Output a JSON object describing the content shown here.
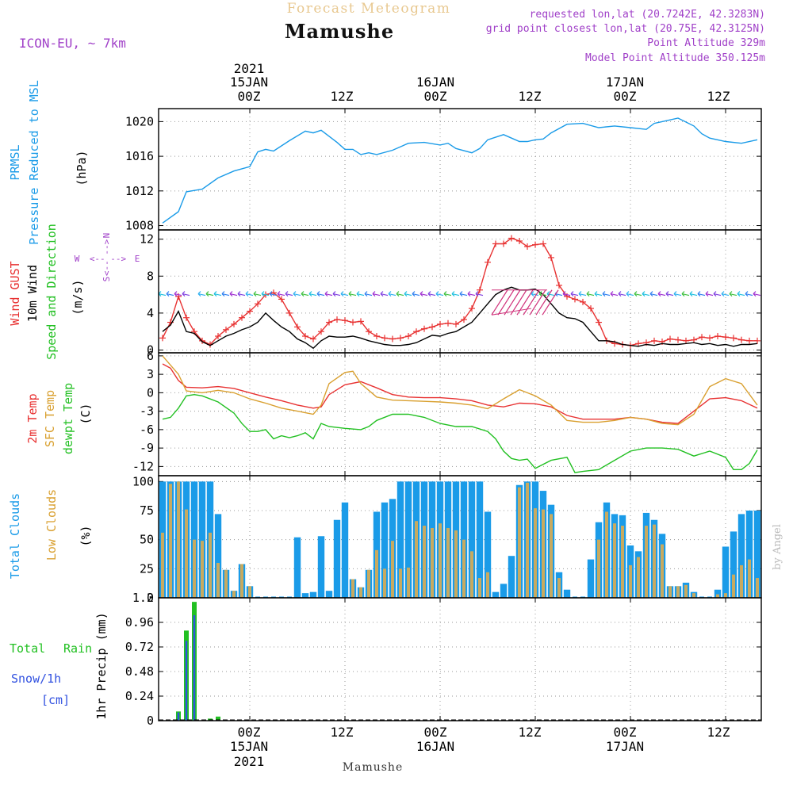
{
  "header": {
    "title": "Forecast Meteogram",
    "location": "Mamushe",
    "model": "ICON-EU, ~ 7km",
    "requested": "requested lon,lat (20.7242E, 42.3283N)",
    "gridpoint": "grid point closest lon,lat (20.75E, 42.3125N)",
    "point_alt": "Point Altitude 329m",
    "model_alt": "Model Point Altitude 350.125m",
    "footer_location": "Mamushe",
    "credit": "by Angel"
  },
  "time_axis": {
    "year": "2021",
    "day_labels": [
      "15JAN",
      "16JAN",
      "17JAN"
    ],
    "tick_labels": [
      "00Z",
      "12Z",
      "00Z",
      "12Z",
      "00Z",
      "12Z"
    ],
    "tick_hours": [
      0,
      12,
      24,
      36,
      48,
      60
    ]
  },
  "colors": {
    "pressure": "#1a9be8",
    "gust": "#e83232",
    "wind": "#000000",
    "temp2m": "#e83232",
    "sfc": "#d9a030",
    "dewpt": "#22c022",
    "total_cloud": "#1a9be8",
    "low_cloud": "#c8aa60",
    "rain": "#22c022",
    "snow": "#3050e0",
    "title": "#e8c890",
    "meta": "#a040c8"
  },
  "chart_data": [
    {
      "type": "line",
      "name": "pressure",
      "labels": [
        "PRMSL",
        "Pressure Reduced to MSL",
        "(hPa)"
      ],
      "ylim": [
        1007.5,
        1021.5
      ],
      "yticks": [
        1008,
        1012,
        1016,
        1020
      ],
      "series": [
        {
          "name": "PRMSL",
          "x": [
            -11,
            -9,
            -8,
            -6,
            -4,
            -2,
            0,
            1,
            2,
            3,
            5,
            7,
            8,
            9,
            11,
            12,
            13,
            14,
            15,
            16,
            18,
            20,
            22,
            24,
            25,
            26,
            28,
            29,
            30,
            32,
            34,
            35,
            36,
            37,
            38,
            40,
            42,
            44,
            46,
            48,
            50,
            51,
            52,
            54,
            56,
            57,
            58,
            60,
            62,
            64
          ],
          "y": [
            1008.3,
            1009.6,
            1011.9,
            1012.2,
            1013.5,
            1014.3,
            1014.8,
            1016.5,
            1016.8,
            1016.6,
            1017.8,
            1018.9,
            1018.7,
            1019.0,
            1017.6,
            1016.8,
            1016.8,
            1016.2,
            1016.4,
            1016.2,
            1016.7,
            1017.5,
            1017.6,
            1017.3,
            1017.5,
            1016.9,
            1016.4,
            1016.9,
            1017.9,
            1018.5,
            1017.7,
            1017.7,
            1017.9,
            1018.0,
            1018.7,
            1019.7,
            1019.8,
            1019.3,
            1019.5,
            1019.3,
            1019.1,
            1019.8,
            1020.0,
            1020.4,
            1019.5,
            1018.6,
            1018.1,
            1017.7,
            1017.5,
            1017.9
          ]
        }
      ]
    },
    {
      "type": "line",
      "name": "wind",
      "labels": [
        "Wind GUST",
        "10m Wind",
        "Speed and Direction",
        "(m/s)"
      ],
      "compass": [
        "N",
        "S",
        "W",
        "E"
      ],
      "ylim": [
        -0.3,
        13
      ],
      "yticks": [
        0,
        4,
        8,
        12
      ],
      "series": [
        {
          "name": "Wind GUST",
          "x": [
            -11,
            -10,
            -9,
            -8,
            -7,
            -6,
            -5,
            -4,
            -3,
            -2,
            -1,
            0,
            1,
            2,
            3,
            4,
            5,
            6,
            7,
            8,
            9,
            10,
            11,
            12,
            13,
            14,
            15,
            16,
            17,
            18,
            19,
            20,
            21,
            22,
            23,
            24,
            25,
            26,
            27,
            28,
            29,
            30,
            31,
            32,
            33,
            34,
            35,
            36,
            37,
            38,
            39,
            40,
            41,
            42,
            43,
            44,
            45,
            46,
            47,
            48,
            49,
            50,
            51,
            52,
            53,
            54,
            55,
            56,
            57,
            58,
            59,
            60,
            61,
            62,
            63,
            64
          ],
          "y": [
            1.3,
            3.0,
            5.8,
            3.5,
            2.0,
            1.0,
            0.6,
            1.5,
            2.2,
            2.8,
            3.5,
            4.2,
            5.0,
            6.0,
            6.2,
            5.5,
            4.0,
            2.5,
            1.5,
            1.2,
            2.0,
            3.0,
            3.3,
            3.2,
            3.0,
            3.1,
            2.0,
            1.5,
            1.3,
            1.2,
            1.3,
            1.5,
            2.0,
            2.3,
            2.5,
            2.8,
            2.9,
            2.8,
            3.3,
            4.5,
            6.5,
            9.5,
            11.5,
            11.5,
            12.1,
            11.8,
            11.2,
            11.4,
            11.5,
            10.0,
            7.0,
            5.8,
            5.5,
            5.2,
            4.5,
            3.0,
            1.0,
            0.7,
            0.6,
            0.5,
            0.7,
            0.8,
            1.0,
            0.9,
            1.2,
            1.1,
            1.0,
            1.1,
            1.4,
            1.3,
            1.5,
            1.4,
            1.3,
            1.1,
            1.0,
            1.0
          ]
        },
        {
          "name": "10m Wind",
          "x": [
            -11,
            -10,
            -9,
            -8,
            -7,
            -6,
            -5,
            -4,
            -3,
            -2,
            -1,
            0,
            1,
            2,
            3,
            4,
            5,
            6,
            7,
            8,
            9,
            10,
            11,
            12,
            13,
            14,
            15,
            16,
            17,
            18,
            19,
            20,
            21,
            22,
            23,
            24,
            25,
            26,
            27,
            28,
            29,
            30,
            31,
            32,
            33,
            34,
            35,
            36,
            37,
            38,
            39,
            40,
            41,
            42,
            43,
            44,
            45,
            46,
            47,
            48,
            49,
            50,
            51,
            52,
            53,
            54,
            55,
            56,
            57,
            58,
            59,
            60,
            61,
            62,
            63,
            64
          ],
          "y": [
            2.0,
            2.7,
            4.2,
            2.0,
            1.8,
            0.9,
            0.5,
            1.0,
            1.5,
            1.8,
            2.2,
            2.5,
            3.0,
            4.0,
            3.2,
            2.5,
            2.0,
            1.2,
            0.8,
            0.2,
            1.0,
            1.5,
            1.4,
            1.4,
            1.5,
            1.3,
            1.0,
            0.8,
            0.6,
            0.5,
            0.5,
            0.6,
            0.8,
            1.2,
            1.6,
            1.5,
            1.8,
            2.0,
            2.5,
            3.0,
            4.0,
            5.0,
            6.0,
            6.5,
            6.8,
            6.5,
            6.5,
            6.6,
            6.0,
            5.0,
            4.0,
            3.5,
            3.4,
            3.0,
            2.0,
            1.0,
            1.0,
            0.9,
            0.6,
            0.5,
            0.4,
            0.6,
            0.5,
            0.7,
            0.6,
            0.6,
            0.7,
            0.8,
            0.6,
            0.7,
            0.5,
            0.6,
            0.4,
            0.6,
            0.6,
            0.7
          ]
        }
      ]
    },
    {
      "type": "line",
      "name": "temperature",
      "labels": [
        "2m Temp",
        "SFC Temp",
        "dewpt Temp",
        "(C)"
      ],
      "ylim": [
        -13.5,
        6.5
      ],
      "yticks": [
        6,
        3,
        0,
        -3,
        -6,
        -9,
        -12
      ],
      "series": [
        {
          "name": "2m Temp",
          "x": [
            -11,
            -10,
            -9,
            -8,
            -6,
            -4,
            -2,
            0,
            2,
            4,
            6,
            8,
            9,
            10,
            12,
            14,
            16,
            18,
            20,
            22,
            24,
            26,
            28,
            30,
            32,
            34,
            36,
            38,
            40,
            42,
            44,
            46,
            48,
            50,
            52,
            54,
            56,
            58,
            60,
            62,
            64
          ],
          "y": [
            4.7,
            4.0,
            2.0,
            0.9,
            0.8,
            1.0,
            0.7,
            0.0,
            -0.7,
            -1.3,
            -2.0,
            -2.5,
            -2.3,
            -0.3,
            1.3,
            1.8,
            0.8,
            -0.3,
            -0.7,
            -0.8,
            -0.8,
            -1.0,
            -1.3,
            -2.0,
            -2.3,
            -1.7,
            -1.8,
            -2.3,
            -3.7,
            -4.3,
            -4.3,
            -4.3,
            -4.0,
            -4.3,
            -4.8,
            -5.0,
            -3.0,
            -1.0,
            -0.8,
            -1.3,
            -2.5
          ]
        },
        {
          "name": "SFC Temp",
          "x": [
            -11,
            -9,
            -8,
            -6,
            -4,
            -2,
            0,
            2,
            4,
            6,
            8,
            9,
            10,
            12,
            13,
            14,
            16,
            18,
            20,
            22,
            24,
            26,
            28,
            30,
            32,
            34,
            35,
            36,
            38,
            40,
            42,
            44,
            46,
            48,
            50,
            52,
            54,
            56,
            58,
            60,
            62,
            64
          ],
          "y": [
            6.0,
            3.0,
            0.3,
            0.0,
            0.4,
            0.0,
            -1.0,
            -1.7,
            -2.5,
            -3.0,
            -3.5,
            -2.0,
            1.5,
            3.3,
            3.5,
            1.5,
            -0.7,
            -1.2,
            -1.3,
            -1.4,
            -1.5,
            -1.7,
            -2.0,
            -2.6,
            -1.0,
            0.5,
            0.0,
            -0.5,
            -2.0,
            -4.5,
            -4.8,
            -4.8,
            -4.5,
            -4.0,
            -4.3,
            -5.0,
            -5.2,
            -3.5,
            1.0,
            2.3,
            1.5,
            -2.0
          ]
        },
        {
          "name": "dewpt Temp",
          "x": [
            -11,
            -10,
            -9,
            -8,
            -7,
            -6,
            -4,
            -2,
            -1,
            0,
            1,
            2,
            3,
            4,
            5,
            6,
            7,
            8,
            9,
            10,
            12,
            14,
            15,
            16,
            18,
            20,
            22,
            24,
            26,
            28,
            30,
            31,
            32,
            33,
            34,
            35,
            36,
            38,
            40,
            41,
            42,
            44,
            46,
            48,
            50,
            52,
            54,
            56,
            58,
            60,
            61,
            62,
            63,
            64
          ],
          "y": [
            -4.3,
            -4.0,
            -2.5,
            -0.5,
            -0.3,
            -0.5,
            -1.5,
            -3.3,
            -5.0,
            -6.3,
            -6.3,
            -6.0,
            -7.5,
            -7.0,
            -7.3,
            -7.0,
            -6.5,
            -7.5,
            -5.0,
            -5.5,
            -5.8,
            -6.0,
            -5.5,
            -4.5,
            -3.5,
            -3.5,
            -4.0,
            -5.0,
            -5.5,
            -5.5,
            -6.3,
            -7.5,
            -9.5,
            -10.7,
            -11.0,
            -10.8,
            -12.3,
            -11.0,
            -10.5,
            -13.0,
            -12.8,
            -12.5,
            -11.0,
            -9.5,
            -9.0,
            -9.0,
            -9.2,
            -10.3,
            -9.5,
            -10.5,
            -12.5,
            -12.5,
            -11.5,
            -9.3
          ]
        }
      ]
    },
    {
      "type": "bar",
      "name": "clouds",
      "labels": [
        "Total Clouds",
        "Low Clouds",
        "(%)"
      ],
      "ylim": [
        0,
        105
      ],
      "yticks": [
        0,
        25,
        50,
        75,
        100
      ],
      "x": [
        -11,
        -10,
        -9,
        -8,
        -7,
        -6,
        -5,
        -4,
        -3,
        -2,
        -1,
        0,
        1,
        2,
        3,
        4,
        5,
        6,
        7,
        8,
        9,
        10,
        11,
        12,
        13,
        14,
        15,
        16,
        17,
        18,
        19,
        20,
        21,
        22,
        23,
        24,
        25,
        26,
        27,
        28,
        29,
        30,
        31,
        32,
        33,
        34,
        35,
        36,
        37,
        38,
        39,
        40,
        41,
        42,
        43,
        44,
        45,
        46,
        47,
        48,
        49,
        50,
        51,
        52,
        53,
        54,
        55,
        56,
        57,
        58,
        59,
        60,
        61,
        62,
        63,
        64
      ],
      "series": [
        {
          "name": "Total Clouds",
          "values": [
            100,
            100,
            100,
            100,
            100,
            100,
            100,
            72,
            24,
            6,
            29,
            10,
            0,
            0,
            0,
            0,
            0,
            52,
            4,
            5,
            53,
            6,
            67,
            82,
            16,
            9,
            24,
            74,
            82,
            85,
            100,
            100,
            100,
            100,
            100,
            100,
            100,
            100,
            100,
            100,
            100,
            74,
            5,
            12,
            36,
            97,
            100,
            100,
            92,
            80,
            22,
            7,
            0,
            0,
            33,
            65,
            82,
            72,
            71,
            45,
            40,
            73,
            67,
            55,
            10,
            10,
            13,
            5,
            0,
            0,
            7,
            44,
            57,
            72,
            75,
            75
          ]
        },
        {
          "name": "Low Clouds",
          "values": [
            56,
            98,
            100,
            76,
            50,
            49,
            56,
            30,
            24,
            6,
            29,
            10,
            0,
            0,
            0,
            0,
            0,
            0,
            0,
            0,
            0,
            0,
            0,
            0,
            16,
            9,
            24,
            41,
            25,
            49,
            25,
            26,
            66,
            62,
            60,
            64,
            60,
            58,
            50,
            40,
            17,
            22,
            0,
            0,
            0,
            95,
            99,
            77,
            76,
            72,
            17,
            0,
            0,
            0,
            0,
            50,
            74,
            64,
            62,
            28,
            35,
            62,
            63,
            46,
            10,
            10,
            11,
            4,
            0,
            0,
            3,
            4,
            20,
            28,
            33,
            17
          ]
        }
      ]
    },
    {
      "type": "bar",
      "name": "precip",
      "labels": [
        "1hr Precip (mm)",
        "Total",
        "Rain",
        "Snow/1h",
        "[cm]"
      ],
      "ylim": [
        0,
        1.2
      ],
      "yticks": [
        0,
        0.24,
        0.48,
        0.72,
        0.96,
        1.2
      ],
      "ytick_labels": [
        "0",
        "0.24",
        "0.48",
        "0.72",
        "0.96",
        "1.2"
      ],
      "x": [
        -9,
        -8,
        -7,
        -6,
        -5,
        -4
      ],
      "series": [
        {
          "name": "Total Rain",
          "values": [
            0.09,
            0.88,
            1.16,
            0.0,
            0.02,
            0.04
          ]
        },
        {
          "name": "Snow/1h",
          "values": [
            0.08,
            0.78,
            1.03,
            0.0,
            0.0,
            0.0
          ]
        }
      ]
    }
  ]
}
